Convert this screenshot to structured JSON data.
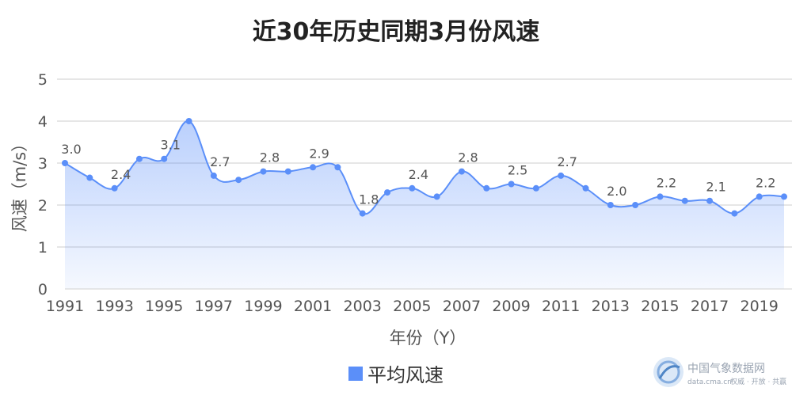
{
  "chart_data": {
    "type": "area",
    "title": "近30年历史同期3月份风速",
    "xlabel": "年份（Y）",
    "ylabel": "风速（m/s）",
    "x": [
      1991,
      1992,
      1993,
      1994,
      1995,
      1996,
      1997,
      1998,
      1999,
      2000,
      2001,
      2002,
      2003,
      2004,
      2005,
      2006,
      2007,
      2008,
      2009,
      2010,
      2011,
      2012,
      2013,
      2014,
      2015,
      2016,
      2017,
      2018,
      2019,
      2020
    ],
    "xticks": [
      "1991",
      "1993",
      "1995",
      "1997",
      "1999",
      "2001",
      "2003",
      "2005",
      "2007",
      "2009",
      "2011",
      "2013",
      "2015",
      "2017",
      "2019"
    ],
    "yticks": [
      "0",
      "1",
      "2",
      "3",
      "4",
      "5"
    ],
    "ylim": [
      0,
      5
    ],
    "grid": true,
    "legend_position": "bottom",
    "series": [
      {
        "name": "平均风速",
        "color": "#5b8ff9",
        "values": [
          3.0,
          2.65,
          2.4,
          3.1,
          3.1,
          4.0,
          2.7,
          2.6,
          2.8,
          2.8,
          2.9,
          2.9,
          1.8,
          2.3,
          2.4,
          2.2,
          2.8,
          2.4,
          2.5,
          2.4,
          2.7,
          2.4,
          2.0,
          2.0,
          2.2,
          2.1,
          2.1,
          1.8,
          2.2,
          2.2
        ]
      }
    ],
    "data_labels": [
      {
        "x": 1991,
        "text": "3.0"
      },
      {
        "x": 1993,
        "text": "2.4"
      },
      {
        "x": 1995,
        "text": "3.1"
      },
      {
        "x": 1997,
        "text": "2.7"
      },
      {
        "x": 1999,
        "text": "2.8"
      },
      {
        "x": 2001,
        "text": "2.9"
      },
      {
        "x": 2003,
        "text": "1.8"
      },
      {
        "x": 2005,
        "text": "2.4"
      },
      {
        "x": 2007,
        "text": "2.8"
      },
      {
        "x": 2009,
        "text": "2.5"
      },
      {
        "x": 2011,
        "text": "2.7"
      },
      {
        "x": 2013,
        "text": "2.0"
      },
      {
        "x": 2015,
        "text": "2.2"
      },
      {
        "x": 2017,
        "text": "2.1"
      },
      {
        "x": 2019,
        "text": "2.2"
      }
    ]
  },
  "watermark": {
    "brand": "中国气象数据网",
    "url": "data.cma.cn",
    "tagline": "权威 · 开放 · 共赢",
    "icon": "cma-logo-icon"
  }
}
